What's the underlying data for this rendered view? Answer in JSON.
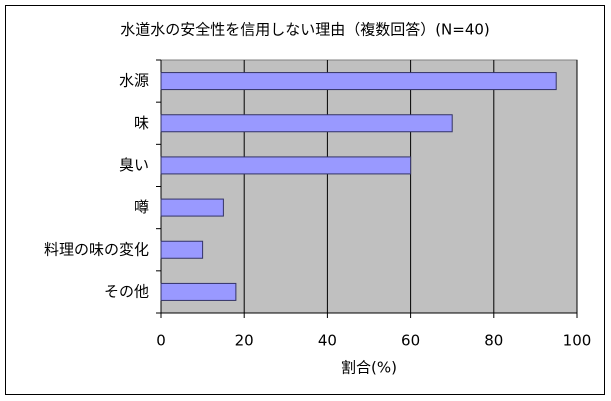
{
  "chart_data": {
    "type": "hbar",
    "title": "水道水の安全性を信用しない理由（複数回答）(N=40)",
    "categories": [
      "水源",
      "味",
      "臭い",
      "噂",
      "料理の味の変化",
      "その他"
    ],
    "values": [
      95,
      70,
      60,
      15,
      10,
      18
    ],
    "color": "#9999ff",
    "xlim": [
      0,
      100
    ],
    "xticks": [
      0,
      20,
      40,
      60,
      80,
      100
    ],
    "xlabel": "割合(%)",
    "grid": true
  }
}
